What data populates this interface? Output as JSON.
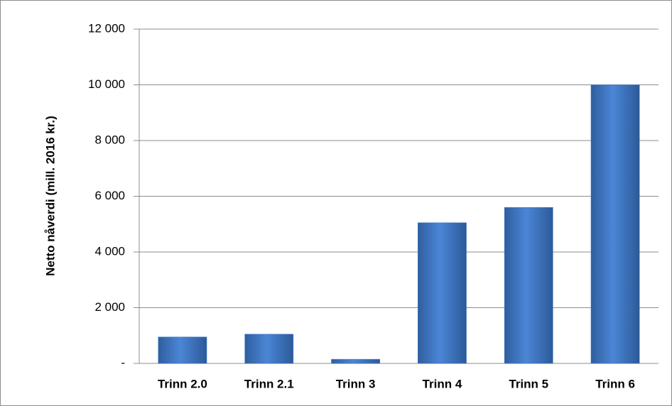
{
  "chart_data": {
    "type": "bar",
    "y_label": "Netto nåverdi (mill. 2016 kr.)",
    "categories": [
      "Trinn 2.0",
      "Trinn 2.1",
      "Trinn 3",
      "Trinn 4",
      "Trinn 5",
      "Trinn 6"
    ],
    "values": [
      950,
      1050,
      150,
      5050,
      5600,
      10000
    ],
    "color": "#3f78c8",
    "ylim": [
      0,
      12000
    ],
    "yticks": [
      {
        "value": 0,
        "label": "-"
      },
      {
        "value": 2000,
        "label": "2 000"
      },
      {
        "value": 4000,
        "label": "4 000"
      },
      {
        "value": 6000,
        "label": "6 000"
      },
      {
        "value": 8000,
        "label": "8 000"
      },
      {
        "value": 10000,
        "label": "10 000"
      },
      {
        "value": 12000,
        "label": "12 000"
      }
    ],
    "grid": true
  }
}
